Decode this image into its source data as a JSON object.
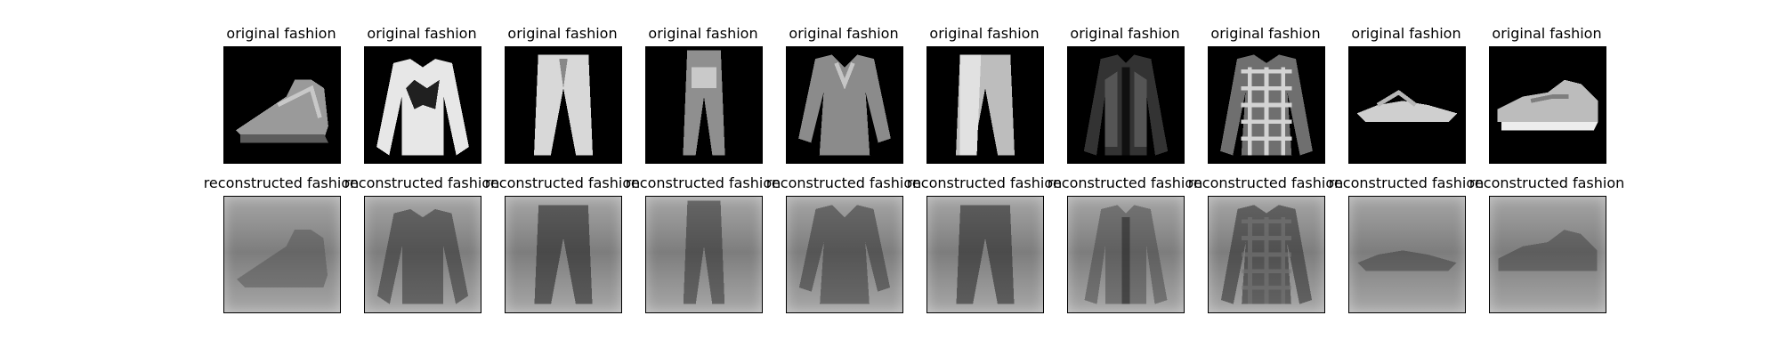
{
  "figure": {
    "original_title": "original fashion",
    "reconstructed_title": "reconstructed fashion"
  },
  "samples": [
    {
      "item": "ankle boot"
    },
    {
      "item": "pullover"
    },
    {
      "item": "trouser"
    },
    {
      "item": "trouser"
    },
    {
      "item": "shirt"
    },
    {
      "item": "trouser"
    },
    {
      "item": "coat"
    },
    {
      "item": "shirt"
    },
    {
      "item": "sandal"
    },
    {
      "item": "sneaker"
    }
  ]
}
